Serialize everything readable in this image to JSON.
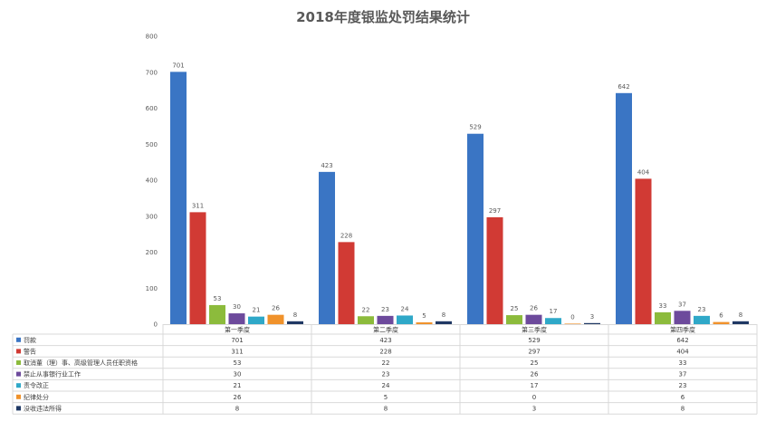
{
  "chart_data": {
    "type": "bar",
    "title": "2018年度银监处罚结果统计",
    "categories": [
      "第一季度",
      "第二季度",
      "第三季度",
      "第四季度"
    ],
    "ylim": [
      0,
      800
    ],
    "yticks": [
      0,
      100,
      200,
      300,
      400,
      500,
      600,
      700,
      800
    ],
    "grid": false,
    "legend": "data-table-bottom",
    "series": [
      {
        "name": "罚款",
        "color": "#3a75c4",
        "values": [
          701,
          423,
          529,
          642
        ]
      },
      {
        "name": "警告",
        "color": "#d13a34",
        "values": [
          311,
          228,
          297,
          404
        ]
      },
      {
        "name": "取消董（理）事、高级管理人员任职资格",
        "color": "#8cbb3c",
        "values": [
          53,
          22,
          25,
          33
        ]
      },
      {
        "name": "禁止从事银行业工作",
        "color": "#6d4a9c",
        "values": [
          30,
          23,
          26,
          37
        ]
      },
      {
        "name": "责令改正",
        "color": "#2fa8c8",
        "values": [
          21,
          24,
          17,
          23
        ]
      },
      {
        "name": "纪律处分",
        "color": "#f0922b",
        "values": [
          26,
          5,
          0,
          6
        ]
      },
      {
        "name": "没收违法所得",
        "color": "#1f3864",
        "values": [
          8,
          8,
          3,
          8
        ]
      }
    ]
  }
}
